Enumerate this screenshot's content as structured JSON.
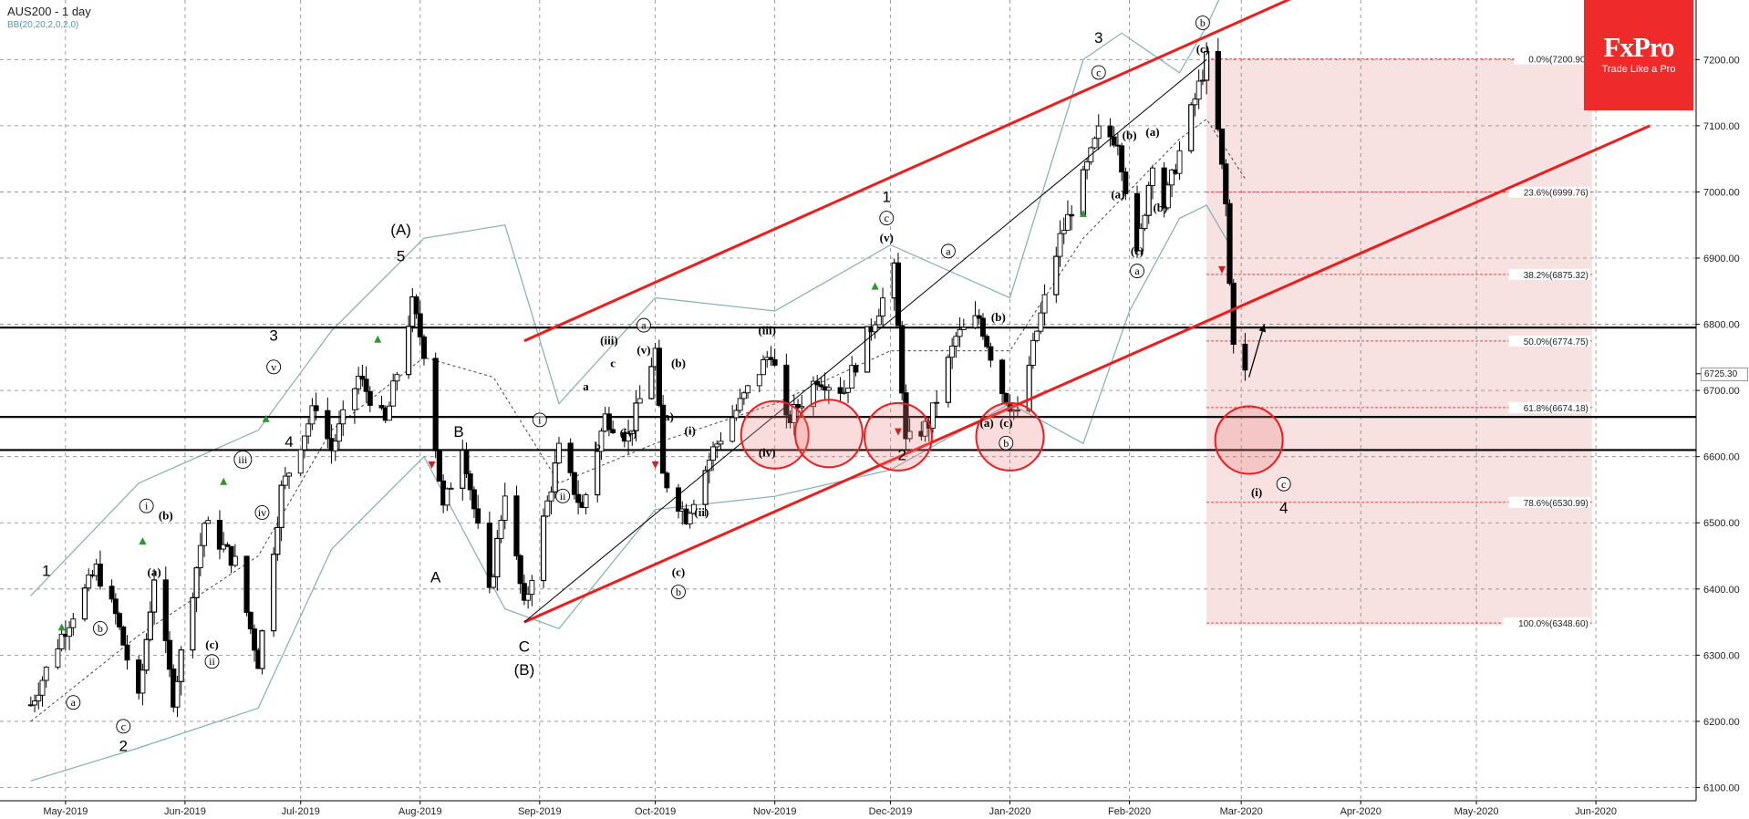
{
  "header": {
    "title": "AUS200 - 1 day",
    "indicator": "BB(20,20,2,0,2,0)"
  },
  "logo": {
    "brand": "FxPro",
    "tagline": "Trade Like a Pro"
  },
  "colors": {
    "channel": "#ee1c1c",
    "bollinger": "#7fb0b6",
    "support": "#000000",
    "fib_line": "#d24a4a",
    "fib_zone": "#f6dcdc",
    "logo": "#ee2a2a",
    "up_arrow": "#2a9a2a",
    "down_arrow": "#cc2222"
  },
  "chart_data": {
    "type": "candlestick",
    "instrument": "AUS200",
    "timeframe": "1 day",
    "ylim": [
      6080,
      7290
    ],
    "y_ticks": [
      "6100.00",
      "6200.00",
      "6300.00",
      "6400.00",
      "6500.00",
      "6600.00",
      "6700.00",
      "6800.00",
      "6900.00",
      "7000.00",
      "7100.00",
      "7200.00"
    ],
    "x_ticks": [
      {
        "label": "May-2019",
        "date": "2019-05-01"
      },
      {
        "label": "Jun-2019",
        "date": "2019-06-01"
      },
      {
        "label": "Jul-2019",
        "date": "2019-07-01"
      },
      {
        "label": "Aug-2019",
        "date": "2019-08-01"
      },
      {
        "label": "Sep-2019",
        "date": "2019-09-01"
      },
      {
        "label": "Oct-2019",
        "date": "2019-10-01"
      },
      {
        "label": "Nov-2019",
        "date": "2019-11-01"
      },
      {
        "label": "Dec-2019",
        "date": "2019-12-01"
      },
      {
        "label": "Jan-2020",
        "date": "2020-01-01"
      },
      {
        "label": "Feb-2020",
        "date": "2020-02-01"
      },
      {
        "label": "Mar-2020",
        "date": "2020-03-01"
      },
      {
        "label": "Apr-2020",
        "date": "2020-04-01"
      },
      {
        "label": "May-2020",
        "date": "2020-05-01"
      },
      {
        "label": "Jun-2020",
        "date": "2020-06-01"
      }
    ],
    "current_price": "6725.30",
    "price_path": [
      [
        "2019-04-22",
        6225
      ],
      [
        "2019-04-30",
        6330
      ],
      [
        "2019-05-09",
        6430
      ],
      [
        "2019-05-14",
        6360
      ],
      [
        "2019-05-20",
        6230
      ],
      [
        "2019-05-24",
        6420
      ],
      [
        "2019-05-29",
        6235
      ],
      [
        "2019-06-06",
        6500
      ],
      [
        "2019-06-14",
        6440
      ],
      [
        "2019-06-20",
        6290
      ],
      [
        "2019-06-26",
        6550
      ],
      [
        "2019-07-05",
        6680
      ],
      [
        "2019-07-09",
        6610
      ],
      [
        "2019-07-16",
        6720
      ],
      [
        "2019-07-23",
        6650
      ],
      [
        "2019-07-30",
        6830
      ],
      [
        "2019-08-02",
        6760
      ],
      [
        "2019-08-07",
        6520
      ],
      [
        "2019-08-12",
        6620
      ],
      [
        "2019-08-19",
        6390
      ],
      [
        "2019-08-23",
        6550
      ],
      [
        "2019-08-28",
        6370
      ],
      [
        "2019-09-06",
        6610
      ],
      [
        "2019-09-12",
        6520
      ],
      [
        "2019-09-18",
        6660
      ],
      [
        "2019-09-24",
        6630
      ],
      [
        "2019-10-01",
        6760
      ],
      [
        "2019-10-03",
        6570
      ],
      [
        "2019-10-09",
        6510
      ],
      [
        "2019-10-16",
        6610
      ],
      [
        "2019-10-23",
        6680
      ],
      [
        "2019-10-31",
        6760
      ],
      [
        "2019-11-04",
        6650
      ],
      [
        "2019-11-12",
        6720
      ],
      [
        "2019-11-19",
        6700
      ],
      [
        "2019-11-27",
        6810
      ],
      [
        "2019-12-02",
        6880
      ],
      [
        "2019-12-05",
        6620
      ],
      [
        "2019-12-11",
        6650
      ],
      [
        "2019-12-18",
        6780
      ],
      [
        "2019-12-24",
        6810
      ],
      [
        "2019-12-30",
        6700
      ],
      [
        "2020-01-03",
        6660
      ],
      [
        "2020-01-08",
        6790
      ],
      [
        "2020-01-14",
        6930
      ],
      [
        "2020-01-20",
        7020
      ],
      [
        "2020-01-24",
        7090
      ],
      [
        "2020-01-29",
        7080
      ],
      [
        "2020-02-03",
        6900
      ],
      [
        "2020-02-07",
        7050
      ],
      [
        "2020-02-10",
        6980
      ],
      [
        "2020-02-14",
        7060
      ],
      [
        "2020-02-19",
        7160
      ],
      [
        "2020-02-21",
        7200
      ],
      [
        "2020-02-24",
        7090
      ],
      [
        "2020-02-26",
        6980
      ],
      [
        "2020-02-27",
        6860
      ],
      [
        "2020-02-28",
        6780
      ],
      [
        "2020-03-02",
        6725
      ]
    ],
    "bollinger": {
      "upper": [
        [
          "2019-04-22",
          6390
        ],
        [
          "2019-05-20",
          6560
        ],
        [
          "2019-06-20",
          6640
        ],
        [
          "2019-07-09",
          6790
        ],
        [
          "2019-08-02",
          6930
        ],
        [
          "2019-08-23",
          6950
        ],
        [
          "2019-09-06",
          6680
        ],
        [
          "2019-10-01",
          6840
        ],
        [
          "2019-11-01",
          6820
        ],
        [
          "2019-12-01",
          6920
        ],
        [
          "2020-01-01",
          6840
        ],
        [
          "2020-01-20",
          7200
        ],
        [
          "2020-01-30",
          7240
        ],
        [
          "2020-02-14",
          7180
        ],
        [
          "2020-02-21",
          7250
        ],
        [
          "2020-02-25",
          7300
        ]
      ],
      "middle": [
        [
          "2019-04-22",
          6200
        ],
        [
          "2019-05-20",
          6330
        ],
        [
          "2019-06-20",
          6450
        ],
        [
          "2019-07-09",
          6640
        ],
        [
          "2019-08-02",
          6750
        ],
        [
          "2019-08-20",
          6720
        ],
        [
          "2019-09-06",
          6560
        ],
        [
          "2019-10-01",
          6620
        ],
        [
          "2019-11-01",
          6680
        ],
        [
          "2019-12-01",
          6760
        ],
        [
          "2020-01-01",
          6760
        ],
        [
          "2020-01-20",
          6930
        ],
        [
          "2020-02-14",
          7080
        ],
        [
          "2020-02-21",
          7110
        ],
        [
          "2020-03-02",
          7020
        ]
      ],
      "lower": [
        [
          "2019-04-22",
          6110
        ],
        [
          "2019-05-20",
          6160
        ],
        [
          "2019-06-20",
          6220
        ],
        [
          "2019-07-09",
          6460
        ],
        [
          "2019-08-02",
          6600
        ],
        [
          "2019-08-23",
          6370
        ],
        [
          "2019-09-06",
          6340
        ],
        [
          "2019-10-01",
          6520
        ],
        [
          "2019-11-01",
          6540
        ],
        [
          "2019-12-01",
          6580
        ],
        [
          "2020-01-01",
          6680
        ],
        [
          "2020-01-20",
          6620
        ],
        [
          "2020-02-01",
          6820
        ],
        [
          "2020-02-14",
          6960
        ],
        [
          "2020-02-21",
          6980
        ],
        [
          "2020-02-27",
          6920
        ]
      ]
    },
    "channel": {
      "upper": [
        [
          "2019-08-28",
          6775
        ],
        [
          "2020-03-15",
          7295
        ]
      ],
      "lower": [
        [
          "2019-08-28",
          6350
        ],
        [
          "2020-06-15",
          7100
        ]
      ]
    },
    "diagonal_line": [
      [
        "2019-08-28",
        6350
      ],
      [
        "2020-02-21",
        7200
      ]
    ],
    "support_levels": [
      6795,
      6660,
      6610
    ],
    "fib_retracement": {
      "range": [
        [
          "2020-02-21",
          7200
        ],
        [
          "2020-05-31",
          6345
        ]
      ],
      "levels": [
        {
          "label": "0.0%(7200.90)",
          "price": 7200.9
        },
        {
          "label": "23.6%(6999.76)",
          "price": 6999.76
        },
        {
          "label": "38.2%(6875.32)",
          "price": 6875.32
        },
        {
          "label": "50.0%(6774.75)",
          "price": 6774.75
        },
        {
          "label": "61.8%(6674.18)",
          "price": 6674.18
        },
        {
          "label": "78.6%(6530.99)",
          "price": 6530.99
        },
        {
          "label": "100.0%(6348.60)",
          "price": 6348.6
        }
      ]
    },
    "highlight_circles": [
      {
        "date": "2019-11-01",
        "price": 6633
      },
      {
        "date": "2019-11-15",
        "price": 6635
      },
      {
        "date": "2019-12-03",
        "price": 6630
      },
      {
        "date": "2020-01-01",
        "price": 6630
      },
      {
        "date": "2020-03-03",
        "price": 6625
      }
    ],
    "projection_arrow": [
      [
        "2020-03-03",
        6720
      ],
      [
        "2020-03-07",
        6800
      ]
    ],
    "wave_labels": [
      {
        "text": "1",
        "date": "2019-04-26",
        "price": 6420
      },
      {
        "text": "a",
        "date": "2019-05-03",
        "price": 6223,
        "circle": true
      },
      {
        "text": "b",
        "date": "2019-05-10",
        "price": 6335,
        "circle": true
      },
      {
        "text": "c",
        "date": "2019-05-16",
        "price": 6187,
        "circle": true
      },
      {
        "text": "2",
        "date": "2019-05-16",
        "price": 6155
      },
      {
        "text": "i",
        "date": "2019-05-22",
        "price": 6520,
        "circle": true
      },
      {
        "text": "(b)",
        "date": "2019-05-27",
        "price": 6505
      },
      {
        "text": "(a)",
        "date": "2019-05-24",
        "price": 6420
      },
      {
        "text": "(c)",
        "date": "2019-06-08",
        "price": 6310
      },
      {
        "text": "ii",
        "date": "2019-06-08",
        "price": 6285,
        "circle": true
      },
      {
        "text": "iii",
        "date": "2019-06-16",
        "price": 6590,
        "circle": true
      },
      {
        "text": "iv",
        "date": "2019-06-21",
        "price": 6510,
        "circle": true
      },
      {
        "text": "3",
        "date": "2019-06-24",
        "price": 6775
      },
      {
        "text": "v",
        "date": "2019-06-24",
        "price": 6730,
        "circle": true
      },
      {
        "text": "4",
        "date": "2019-06-28",
        "price": 6615
      },
      {
        "text": "(A)",
        "date": "2019-07-27",
        "price": 6935
      },
      {
        "text": "5",
        "date": "2019-07-27",
        "price": 6895
      },
      {
        "text": "B",
        "date": "2019-08-11",
        "price": 6630
      },
      {
        "text": "A",
        "date": "2019-08-05",
        "price": 6410
      },
      {
        "text": "C",
        "date": "2019-08-28",
        "price": 6305
      },
      {
        "text": "(B)",
        "date": "2019-08-28",
        "price": 6270
      },
      {
        "text": "i",
        "date": "2019-09-01",
        "price": 6650,
        "circle": true
      },
      {
        "text": "ii",
        "date": "2019-09-07",
        "price": 6535,
        "circle": true
      },
      {
        "text": "a",
        "date": "2019-09-13",
        "price": 6700
      },
      {
        "text": "b",
        "date": "2019-09-16",
        "price": 6610
      },
      {
        "text": "c",
        "date": "2019-09-20",
        "price": 6735
      },
      {
        "text": "(iii)",
        "date": "2019-09-19",
        "price": 6770
      },
      {
        "text": "(iv)",
        "date": "2019-09-24",
        "price": 6630
      },
      {
        "text": "a",
        "date": "2019-09-28",
        "price": 6793,
        "circle": true
      },
      {
        "text": "(v)",
        "date": "2019-09-28",
        "price": 6755
      },
      {
        "text": "(a)",
        "date": "2019-10-04",
        "price": 6655
      },
      {
        "text": "(b)",
        "date": "2019-10-07",
        "price": 6735
      },
      {
        "text": "(i)",
        "date": "2019-10-10",
        "price": 6633
      },
      {
        "text": "(c)",
        "date": "2019-10-07",
        "price": 6420
      },
      {
        "text": "b",
        "date": "2019-10-07",
        "price": 6390,
        "circle": true
      },
      {
        "text": "(ii)",
        "date": "2019-10-13",
        "price": 6510
      },
      {
        "text": "(iii)",
        "date": "2019-10-30",
        "price": 6785
      },
      {
        "text": "(iv)",
        "date": "2019-10-30",
        "price": 6600
      },
      {
        "text": "1",
        "date": "2019-11-30",
        "price": 6985
      },
      {
        "text": "c",
        "date": "2019-11-30",
        "price": 6955,
        "circle": true
      },
      {
        "text": "(v)",
        "date": "2019-11-30",
        "price": 6925
      },
      {
        "text": "2",
        "date": "2019-12-04",
        "price": 6595
      },
      {
        "text": "a",
        "date": "2019-12-16",
        "price": 6905,
        "circle": true
      },
      {
        "text": "(b)",
        "date": "2019-12-29",
        "price": 6805
      },
      {
        "text": "(a)",
        "date": "2019-12-26",
        "price": 6645
      },
      {
        "text": "(c)",
        "date": "2019-12-31",
        "price": 6645
      },
      {
        "text": "b",
        "date": "2019-12-31",
        "price": 6615,
        "circle": true
      },
      {
        "text": "3",
        "date": "2020-01-24",
        "price": 7225
      },
      {
        "text": "c",
        "date": "2020-01-24",
        "price": 7175,
        "circle": true
      },
      {
        "text": "(b)",
        "date": "2020-02-01",
        "price": 7080
      },
      {
        "text": "(a)",
        "date": "2020-01-29",
        "price": 6990
      },
      {
        "text": "(c)",
        "date": "2020-02-03",
        "price": 6905
      },
      {
        "text": "a",
        "date": "2020-02-03",
        "price": 6875,
        "circle": true
      },
      {
        "text": "(a)",
        "date": "2020-02-07",
        "price": 7085
      },
      {
        "text": "(b)",
        "date": "2020-02-09",
        "price": 6970
      },
      {
        "text": "b",
        "date": "2020-02-20",
        "price": 7250,
        "circle": true
      },
      {
        "text": "(c)",
        "date": "2020-02-20",
        "price": 7210
      },
      {
        "text": "(i)",
        "date": "2020-03-05",
        "price": 6540
      },
      {
        "text": "c",
        "date": "2020-03-12",
        "price": 6553,
        "circle": true
      },
      {
        "text": "4",
        "date": "2020-03-12",
        "price": 6515
      }
    ],
    "signal_arrows": [
      {
        "dir": "up",
        "date": "2019-04-30",
        "price": 6340
      },
      {
        "dir": "up",
        "date": "2019-05-21",
        "price": 6470
      },
      {
        "dir": "up",
        "date": "2019-06-11",
        "price": 6560
      },
      {
        "dir": "up",
        "date": "2019-06-22",
        "price": 6655
      },
      {
        "dir": "up",
        "date": "2019-07-21",
        "price": 6775
      },
      {
        "dir": "down",
        "date": "2019-08-04",
        "price": 6590
      },
      {
        "dir": "down",
        "date": "2019-10-01",
        "price": 6590
      },
      {
        "dir": "up",
        "date": "2019-11-27",
        "price": 6855
      },
      {
        "dir": "down",
        "date": "2019-12-03",
        "price": 6640
      },
      {
        "dir": "up",
        "date": "2020-01-20",
        "price": 6965
      },
      {
        "dir": "down",
        "date": "2020-02-25",
        "price": 6885
      }
    ]
  }
}
